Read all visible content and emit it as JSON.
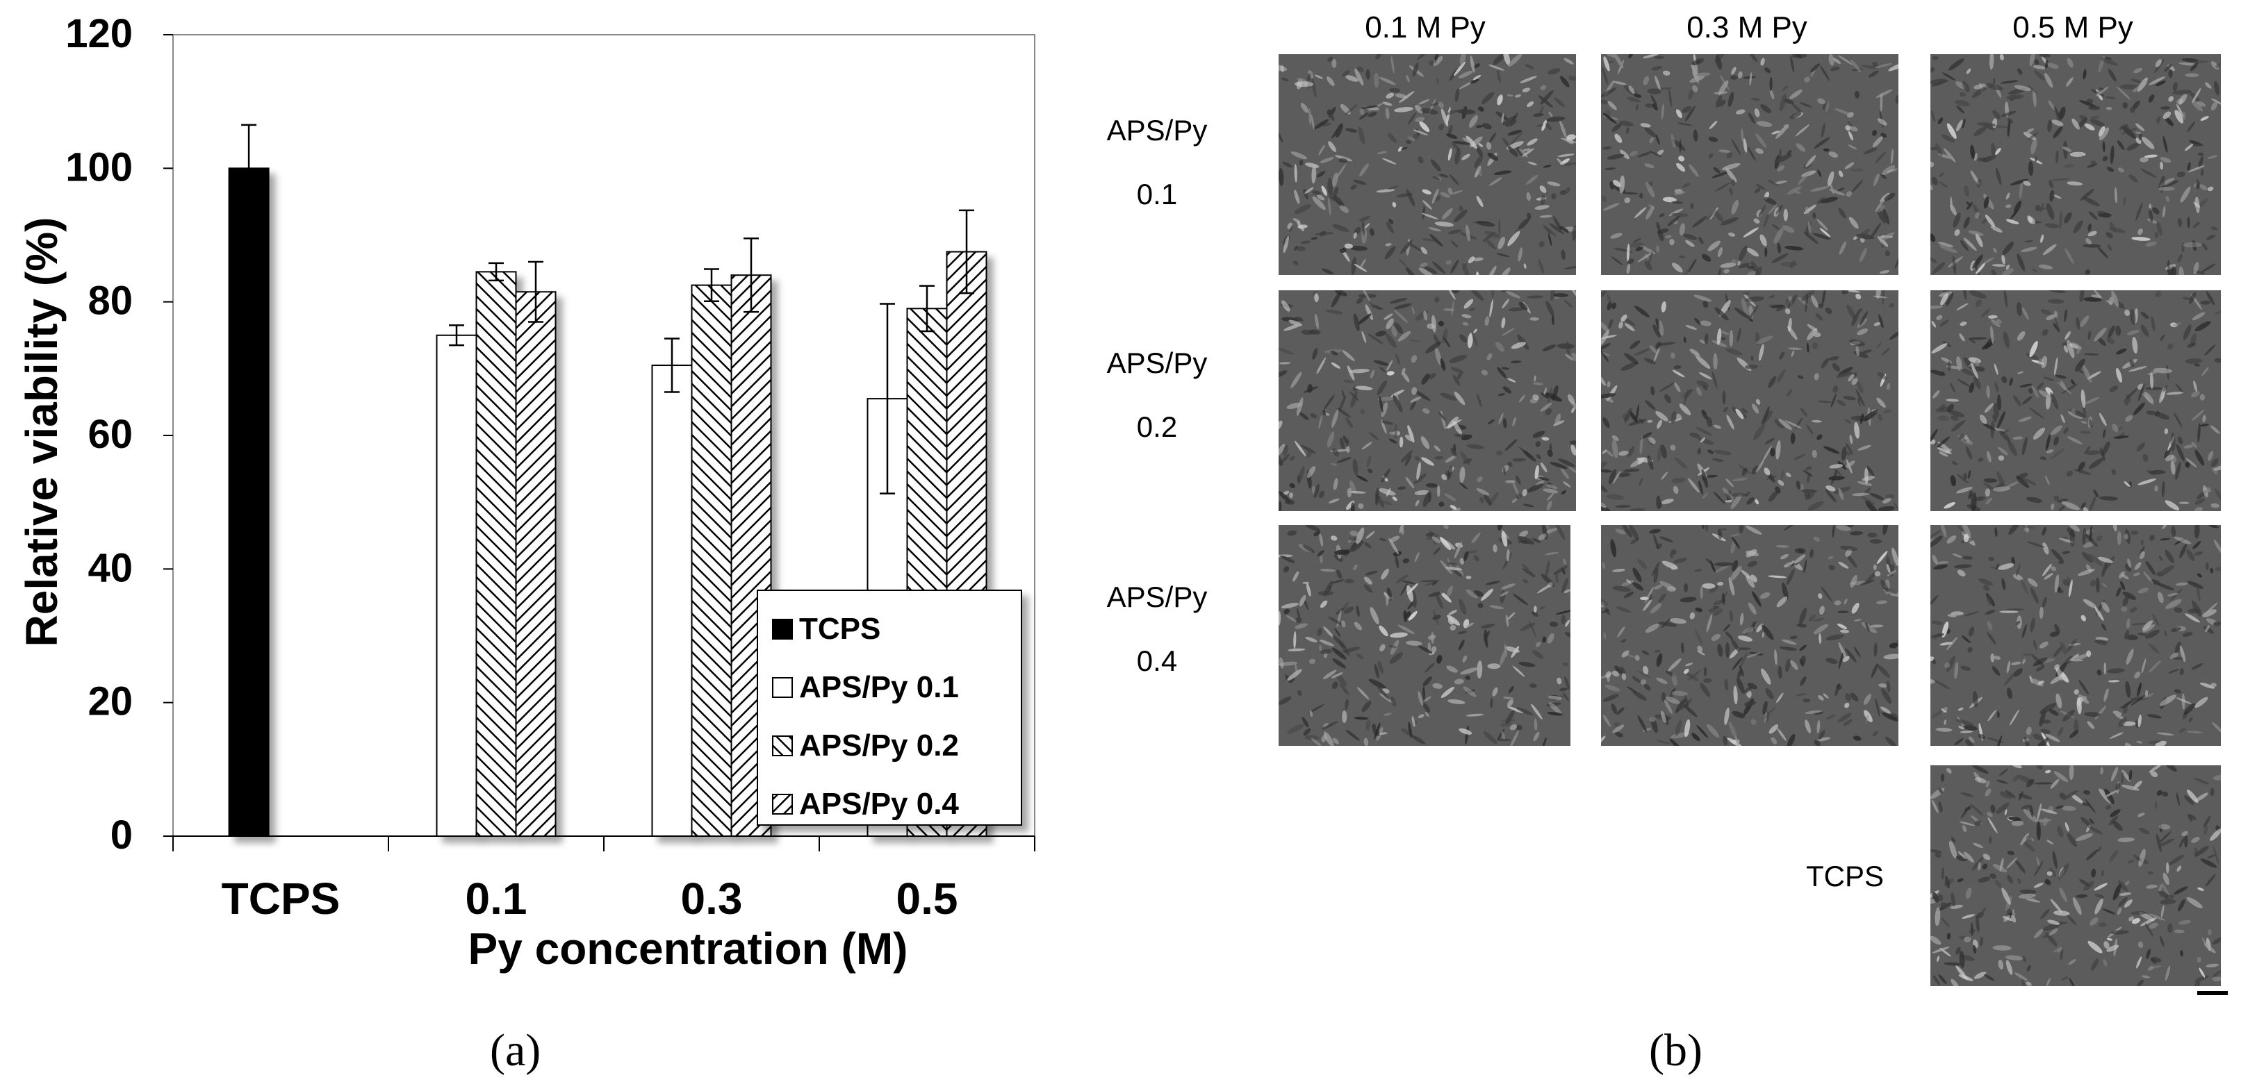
{
  "panel_labels": {
    "a": "(a)",
    "b": "(b)"
  },
  "chart_data": {
    "type": "bar",
    "title": "",
    "xlabel": "Py concentration (M)",
    "ylabel": "Relative viability (%)",
    "ylim": [
      0,
      120
    ],
    "yticks": [
      0,
      20,
      40,
      60,
      80,
      100,
      120
    ],
    "categories": [
      "TCPS",
      "0.1",
      "0.3",
      "0.5"
    ],
    "legend_position": "lower-right",
    "grid": false,
    "series": [
      {
        "name": "TCPS",
        "fill": "solid-black",
        "values": [
          100,
          null,
          null,
          null
        ],
        "errors": [
          6.5,
          null,
          null,
          null
        ]
      },
      {
        "name": "APS/Py 0.1",
        "fill": "white",
        "values": [
          null,
          75,
          70.5,
          65.5
        ],
        "errors": [
          null,
          1.5,
          4,
          14.2
        ]
      },
      {
        "name": "APS/Py 0.2",
        "fill": "hatch-backslash",
        "values": [
          null,
          84.5,
          82.5,
          79
        ],
        "errors": [
          null,
          1.3,
          2.4,
          3.4
        ]
      },
      {
        "name": "APS/Py 0.4",
        "fill": "hatch-slash",
        "values": [
          null,
          81.5,
          84,
          87.5
        ],
        "errors": [
          null,
          4.5,
          5.5,
          6.2
        ]
      }
    ]
  },
  "micrographs": {
    "column_headers": [
      "0.1 M Py",
      "0.3 M Py",
      "0.5 M Py"
    ],
    "row_labels": [
      {
        "line1": "APS/Py",
        "line2": "0.1"
      },
      {
        "line1": "APS/Py",
        "line2": "0.2"
      },
      {
        "line1": "APS/Py",
        "line2": "0.4"
      }
    ],
    "control_label": "TCPS"
  },
  "colors": {
    "bar_black": "#000000",
    "bar_white": "#ffffff",
    "hatch": "#000000",
    "micro_bg": "#5c5c5c"
  }
}
